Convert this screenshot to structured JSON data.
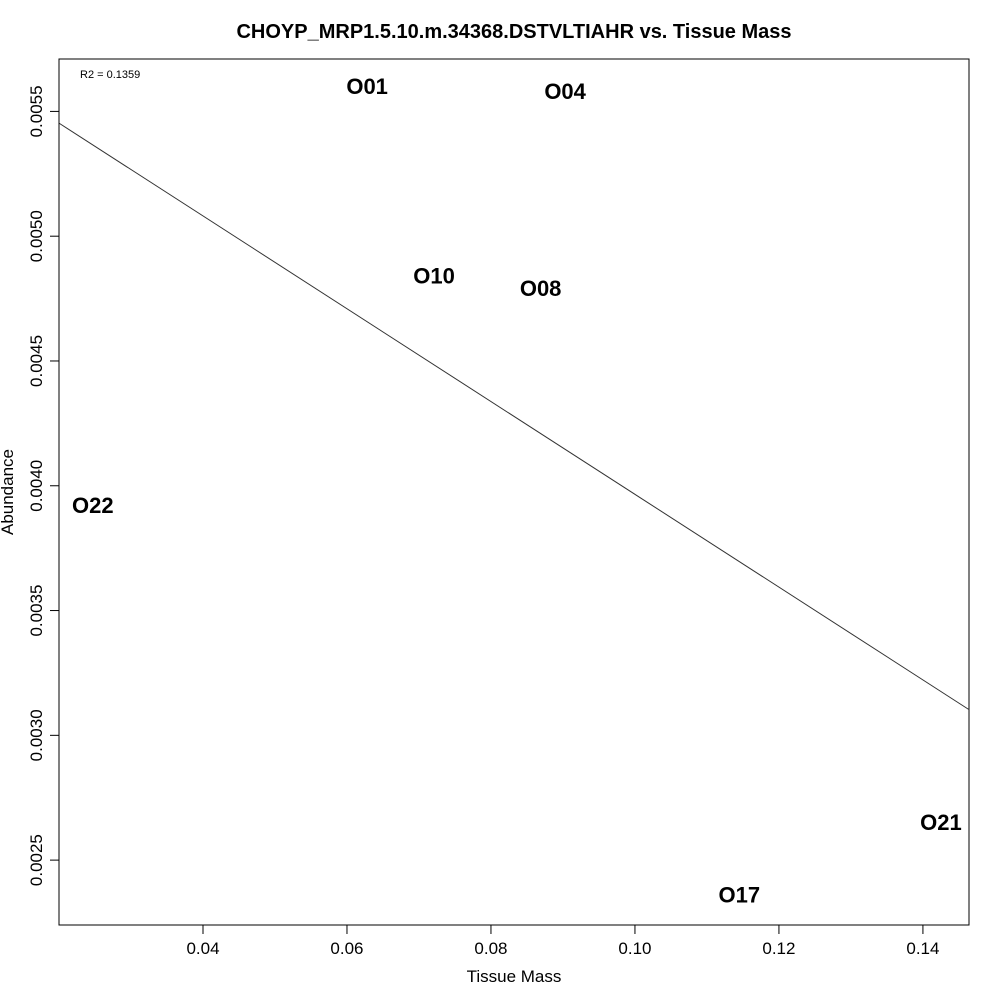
{
  "chart_data": {
    "type": "scatter",
    "title": "CHOYP_MRP1.5.10.m.34368.DSTVLTIAHR vs. Tissue Mass",
    "xlabel": "Tissue Mass",
    "ylabel": "Abundance",
    "xlim": [
      0.02,
      0.1464
    ],
    "ylim": [
      0.00224,
      0.00571
    ],
    "x_ticks": [
      0.04,
      0.06,
      0.08,
      0.1,
      0.12,
      0.14
    ],
    "x_tick_labels": [
      "0.04",
      "0.06",
      "0.08",
      "0.10",
      "0.12",
      "0.14"
    ],
    "y_ticks": [
      0.0025,
      0.003,
      0.0035,
      0.004,
      0.0045,
      0.005,
      0.0055
    ],
    "y_tick_labels": [
      "0.0025",
      "0.0030",
      "0.0035",
      "0.0040",
      "0.0045",
      "0.0050",
      "0.0055"
    ],
    "annotation": "R2 = 0.1359",
    "points": [
      {
        "label": "O01",
        "x": 0.0628,
        "y": 0.0056
      },
      {
        "label": "O04",
        "x": 0.0903,
        "y": 0.00558
      },
      {
        "label": "O10",
        "x": 0.0721,
        "y": 0.00484
      },
      {
        "label": "O08",
        "x": 0.0869,
        "y": 0.00479
      },
      {
        "label": "O22",
        "x": 0.0247,
        "y": 0.00392
      },
      {
        "label": "O21",
        "x": 0.1425,
        "y": 0.00265
      },
      {
        "label": "O17",
        "x": 0.1145,
        "y": 0.00236
      }
    ],
    "regression_line": {
      "x": [
        0.02,
        0.1464
      ],
      "y": [
        0.005453,
        0.003103
      ]
    },
    "grid": false,
    "legend": "none"
  }
}
